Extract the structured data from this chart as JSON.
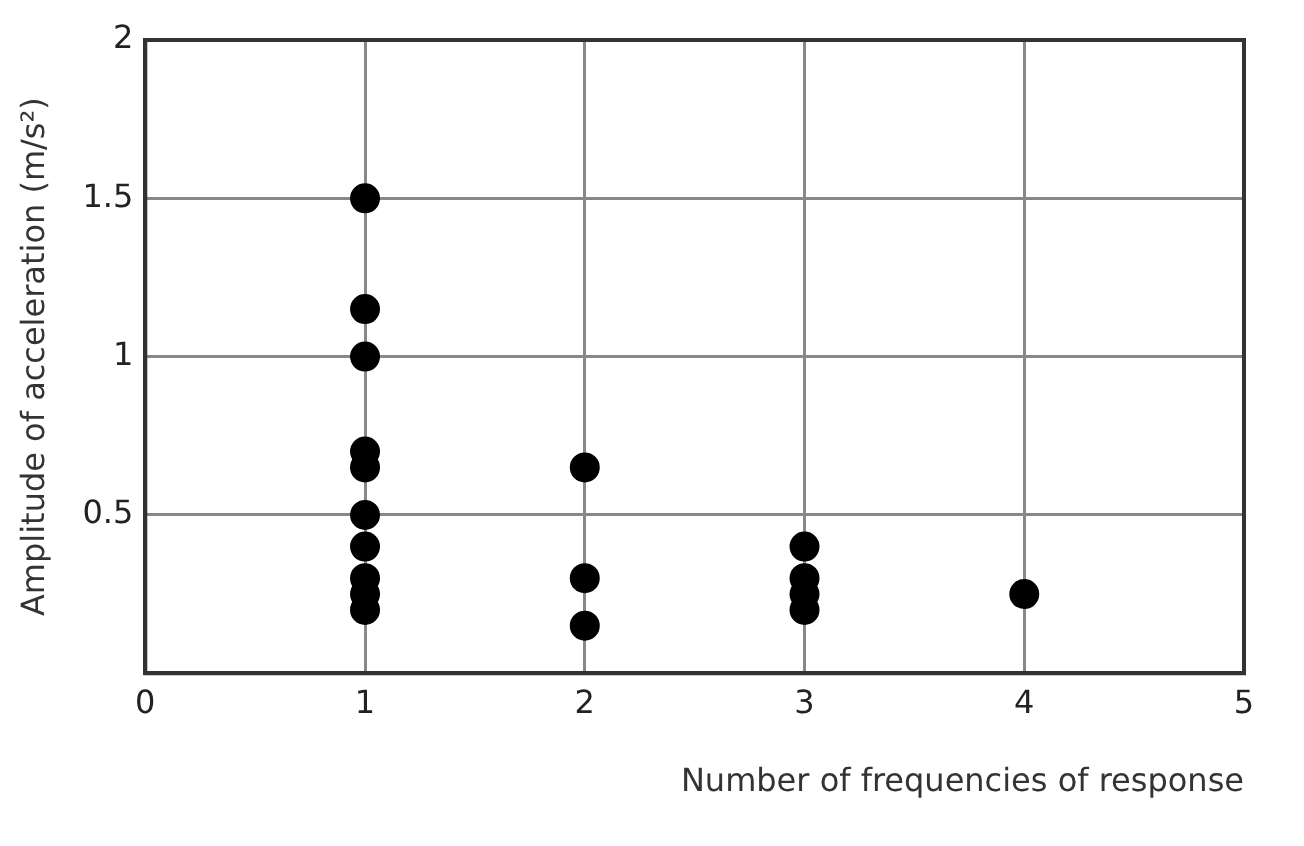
{
  "chart_data": {
    "type": "scatter",
    "xlabel": "Number of frequencies of response",
    "ylabel": "Amplitude of acceleration (m/s²)",
    "series": [
      {
        "color": "#000000",
        "x": [
          1,
          1,
          1,
          1,
          1,
          1,
          1,
          1,
          1,
          1,
          2,
          2,
          2,
          3,
          3,
          3,
          3,
          4
        ],
        "values": [
          1.5,
          1.15,
          1.0,
          0.7,
          0.65,
          0.5,
          0.4,
          0.3,
          0.25,
          0.2,
          0.65,
          0.3,
          0.15,
          0.4,
          0.3,
          0.25,
          0.2,
          0.25
        ]
      }
    ],
    "xlim": [
      0,
      5
    ],
    "xticks": [
      0,
      1,
      2,
      3,
      4,
      5
    ],
    "ylim": [
      0,
      2
    ],
    "yticks": [
      0.5,
      1,
      1.5,
      2
    ],
    "grid": true,
    "marker": "circle",
    "legend": false
  }
}
